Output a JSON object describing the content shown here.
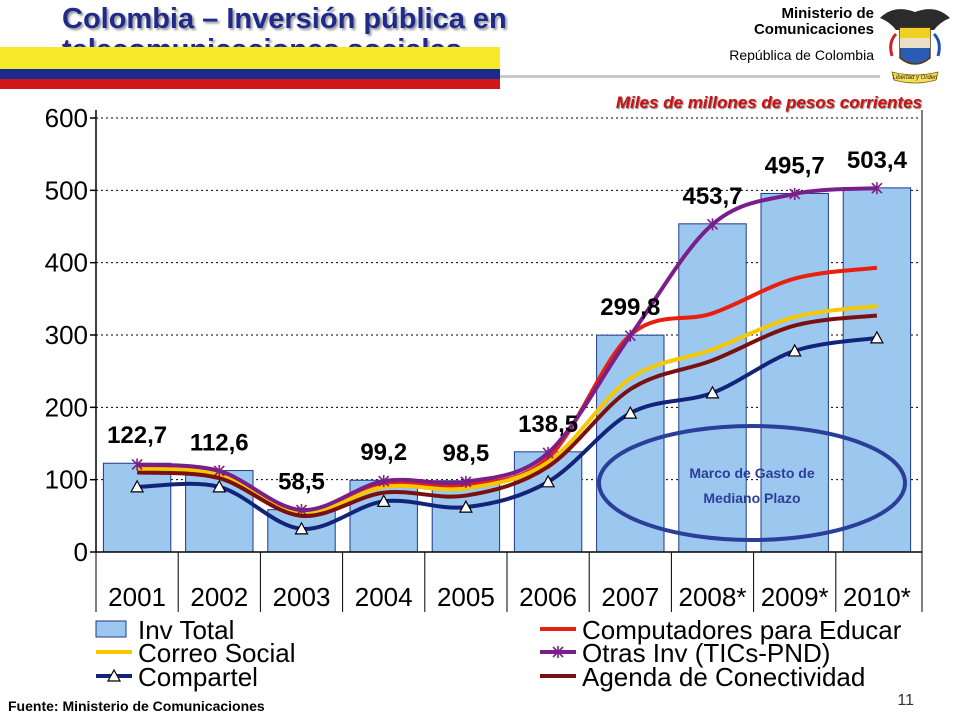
{
  "header": {
    "title": "Colombia – Inversión pública en telecomunicaciones sociales",
    "ministry_line1": "Ministerio de",
    "ministry_line2": "Comunicaciones",
    "republic": "República de Colombia",
    "emblem_text": "Libertad y Orden"
  },
  "units_label": "Miles de millones de  pesos corrientes",
  "source": "Fuente: Ministerio de Comunicaciones",
  "page_number": "11",
  "annotation": {
    "line1": "Marco de Gasto de",
    "line2": "Mediano Plazo"
  },
  "colors": {
    "bar_fill": "#9cc7ef",
    "bar_stroke": "#1e3a8a",
    "computadores": "#e82010",
    "correo": "#f5c800",
    "otras": "#7a1f8a",
    "compartel": "#12247a",
    "agenda": "#7a1010",
    "ellipse": "#2a3e9a"
  },
  "chart_data": {
    "type": "bar",
    "title": "Colombia – Inversión pública en telecomunicaciones sociales",
    "ylabel": "",
    "xlabel": "",
    "ylim": [
      0,
      600
    ],
    "yticks": [
      "0",
      "100",
      "200",
      "300",
      "400",
      "500",
      "600"
    ],
    "grid": true,
    "categories": [
      "2001",
      "2002",
      "2003",
      "2004",
      "2005",
      "2006",
      "2007",
      "2008*",
      "2009*",
      "2010*"
    ],
    "bar_series": {
      "name": "Inv Total",
      "values": [
        122.7,
        112.6,
        58.5,
        99.2,
        98.5,
        138.5,
        299.8,
        453.7,
        495.7,
        503.4
      ],
      "labels": [
        "122,7",
        "112,6",
        "58,5",
        "99,2",
        "98,5",
        "138,5",
        "299,8",
        "453,7",
        "495,7",
        "503,4"
      ]
    },
    "line_series": [
      {
        "name": "Computadores para Educar",
        "color_key": "computadores",
        "marker": "none",
        "values": [
          118,
          110,
          55,
          95,
          93,
          130,
          300,
          330,
          378,
          393
        ]
      },
      {
        "name": "Correo Social",
        "color_key": "correo",
        "marker": "none",
        "values": [
          115,
          107,
          53,
          90,
          88,
          124,
          240,
          280,
          325,
          340
        ]
      },
      {
        "name": "Otras Inv (TICs-PND)",
        "color_key": "otras",
        "marker": "star",
        "values": [
          121,
          112,
          58,
          98,
          97,
          137,
          299,
          453,
          495,
          503
        ]
      },
      {
        "name": "Compartel",
        "color_key": "compartel",
        "marker": "triangle",
        "values": [
          90,
          90,
          32,
          70,
          62,
          97,
          192,
          220,
          278,
          296
        ]
      },
      {
        "name": "Agenda de Conectividad",
        "color_key": "agenda",
        "marker": "none",
        "values": [
          110,
          102,
          50,
          82,
          78,
          118,
          225,
          265,
          313,
          327
        ]
      }
    ],
    "legend": [
      {
        "name": "Inv Total",
        "kind": "bar"
      },
      {
        "name": "Computadores para Educar",
        "kind": "line",
        "color_key": "computadores",
        "marker": "none"
      },
      {
        "name": "Correo Social",
        "kind": "line",
        "color_key": "correo",
        "marker": "none"
      },
      {
        "name": "Otras Inv (TICs-PND)",
        "kind": "line",
        "color_key": "otras",
        "marker": "star"
      },
      {
        "name": "Compartel",
        "kind": "line",
        "color_key": "compartel",
        "marker": "triangle"
      },
      {
        "name": "Agenda de Conectividad",
        "kind": "line",
        "color_key": "agenda",
        "marker": "none"
      }
    ],
    "legend_position": "bottom"
  }
}
